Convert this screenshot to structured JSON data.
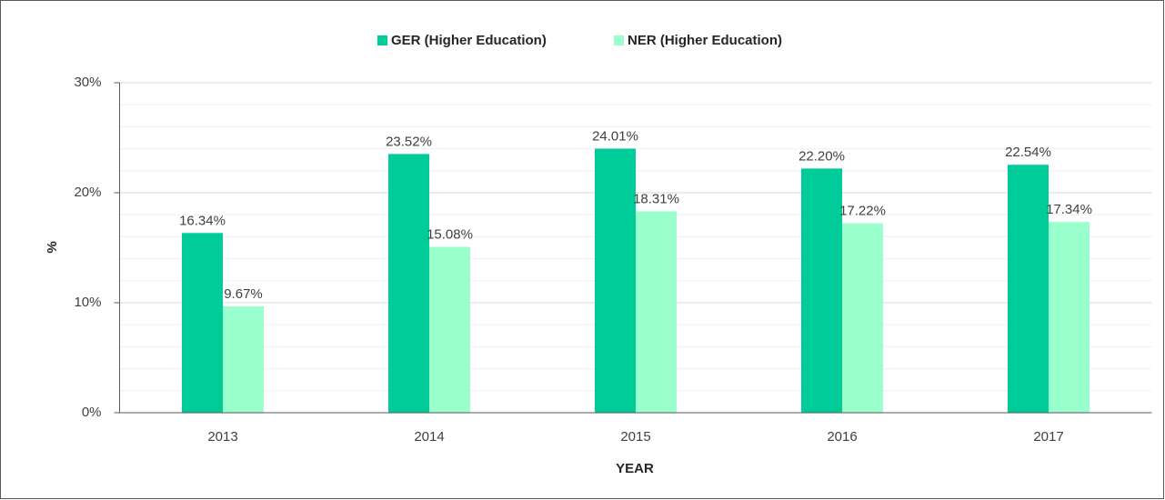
{
  "chart_data": {
    "type": "bar",
    "xlabel": "YEAR",
    "ylabel": "%",
    "categories": [
      "2013",
      "2014",
      "2015",
      "2016",
      "2017"
    ],
    "series": [
      {
        "name": "GER (Higher Education)",
        "color": "#00cc99",
        "values": [
          16.34,
          23.52,
          24.01,
          22.2,
          22.54
        ],
        "value_labels": [
          "16.34%",
          "23.52%",
          "24.01%",
          "22.20%",
          "22.54%"
        ]
      },
      {
        "name": "NER (Higher Education)",
        "color": "#99ffcc",
        "values": [
          9.67,
          15.08,
          18.31,
          17.22,
          17.34
        ],
        "value_labels": [
          "9.67%",
          "15.08%",
          "18.31%",
          "17.22%",
          "17.34%"
        ]
      }
    ],
    "ylim": [
      0,
      30
    ],
    "yticks": [
      {
        "value": 0,
        "label": "0%"
      },
      {
        "value": 10,
        "label": "10%"
      },
      {
        "value": 20,
        "label": "20%"
      },
      {
        "value": 30,
        "label": "30%"
      }
    ],
    "minor_yticks": [
      2,
      4,
      6,
      8,
      12,
      14,
      16,
      18,
      22,
      24,
      26,
      28
    ],
    "grid": true,
    "legend": "top"
  }
}
